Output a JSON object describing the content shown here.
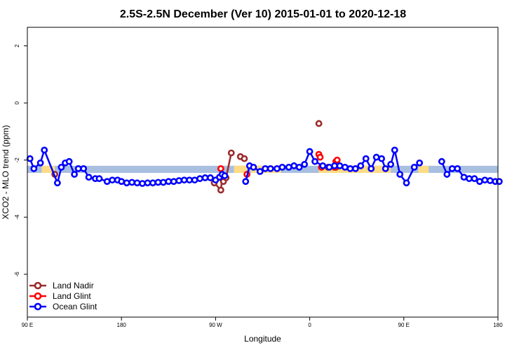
{
  "chart_data": {
    "type": "line",
    "title": "2.5S-2.5N December (Ver 10)   2015-01-01 to 2020-12-18",
    "xlabel": "Longitude",
    "ylabel": "XCO2 - MLO trend (ppm)",
    "xlim": [
      90,
      450
    ],
    "ylim": [
      -7.5,
      2.65
    ],
    "x_ticks": [
      {
        "value": 90,
        "label": "90 E"
      },
      {
        "value": 162,
        "label": "180"
      },
      {
        "value": 234,
        "label": "90 W"
      },
      {
        "value": 306,
        "label": "0"
      },
      {
        "value": 378,
        "label": "90 E"
      },
      {
        "value": 450,
        "label": "180"
      }
    ],
    "y_ticks": [
      {
        "value": 2,
        "label": "2"
      },
      {
        "value": 0,
        "label": "0"
      },
      {
        "value": -2,
        "label": "-2"
      },
      {
        "value": -4,
        "label": "-4"
      },
      {
        "value": -6,
        "label": "-6"
      }
    ],
    "band": {
      "ymin": -2.45,
      "ymax": -2.2,
      "ocean_color": "#a8bfe0",
      "land_color": "#fddc85",
      "land_ranges": [
        [
          101,
          111
        ],
        [
          248,
          258
        ],
        [
          261,
          284
        ],
        [
          313,
          368
        ],
        [
          389,
          397
        ]
      ]
    },
    "series": [
      {
        "name": "Land Nadir",
        "color": "#9b2b2b",
        "x": [
          111,
          233,
          238,
          239,
          240,
          242,
          246,
          253,
          256,
          313,
          320,
          326
        ],
        "y": [
          -2.5,
          -2.8,
          -3.05,
          -2.65,
          -2.75,
          -2.62,
          -1.75,
          -1.88,
          -1.95,
          -0.72,
          -2.25,
          -2.25
        ],
        "segments": [
          [
            1,
            6
          ]
        ]
      },
      {
        "name": "Land Glint",
        "color": "#ff0000",
        "x": [
          238,
          240,
          258,
          313,
          314,
          315,
          325,
          326,
          327
        ],
        "y": [
          -2.3,
          -2.55,
          -2.5,
          -1.8,
          -1.9,
          -2.25,
          -2.25,
          -2.05,
          -2.0
        ],
        "segments": []
      },
      {
        "name": "Ocean Glint",
        "color": "#0000ff",
        "x": [
          92,
          95,
          100,
          103,
          113,
          116,
          119,
          122,
          126,
          129,
          133,
          137,
          142,
          145,
          151,
          155,
          159,
          162,
          166,
          170,
          174,
          178,
          182,
          186,
          190,
          194,
          198,
          202,
          206,
          210,
          214,
          218,
          222,
          226,
          230,
          234,
          237,
          239,
          241,
          257,
          260,
          263,
          268,
          272,
          276,
          281,
          285,
          290,
          294,
          298,
          302,
          306,
          310,
          316,
          321,
          325,
          329,
          333,
          337,
          341,
          345,
          349,
          353,
          357,
          361,
          364,
          368,
          371,
          375,
          380,
          386,
          390,
          407,
          411,
          415,
          419,
          424,
          428,
          432,
          436,
          440,
          444,
          448,
          451
        ],
        "y": [
          -1.95,
          -2.3,
          -2.1,
          -1.65,
          -2.8,
          -2.25,
          -2.1,
          -2.05,
          -2.5,
          -2.3,
          -2.3,
          -2.6,
          -2.65,
          -2.65,
          -2.75,
          -2.7,
          -2.7,
          -2.75,
          -2.8,
          -2.78,
          -2.8,
          -2.82,
          -2.8,
          -2.8,
          -2.78,
          -2.78,
          -2.75,
          -2.75,
          -2.72,
          -2.7,
          -2.7,
          -2.7,
          -2.65,
          -2.62,
          -2.62,
          -2.7,
          -2.6,
          -2.5,
          -2.55,
          -2.75,
          -2.2,
          -2.25,
          -2.4,
          -2.3,
          -2.3,
          -2.3,
          -2.25,
          -2.25,
          -2.2,
          -2.25,
          -2.15,
          -1.7,
          -2.05,
          -2.2,
          -2.25,
          -2.2,
          -2.2,
          -2.25,
          -2.3,
          -2.3,
          -2.2,
          -1.95,
          -2.3,
          -1.9,
          -1.95,
          -2.3,
          -2.15,
          -1.65,
          -2.5,
          -2.8,
          -2.25,
          -2.1,
          -2.05,
          -2.5,
          -2.3,
          -2.3,
          -2.6,
          -2.65,
          -2.65,
          -2.75,
          -2.7,
          -2.72,
          -2.75,
          -2.75
        ],
        "segments": [
          [
            0,
            38
          ],
          [
            39,
            71
          ],
          [
            72,
            83
          ]
        ]
      }
    ],
    "legend": {
      "position": "bottom-left",
      "entries": [
        "Land Nadir",
        "Land Glint",
        "Ocean Glint"
      ]
    }
  }
}
